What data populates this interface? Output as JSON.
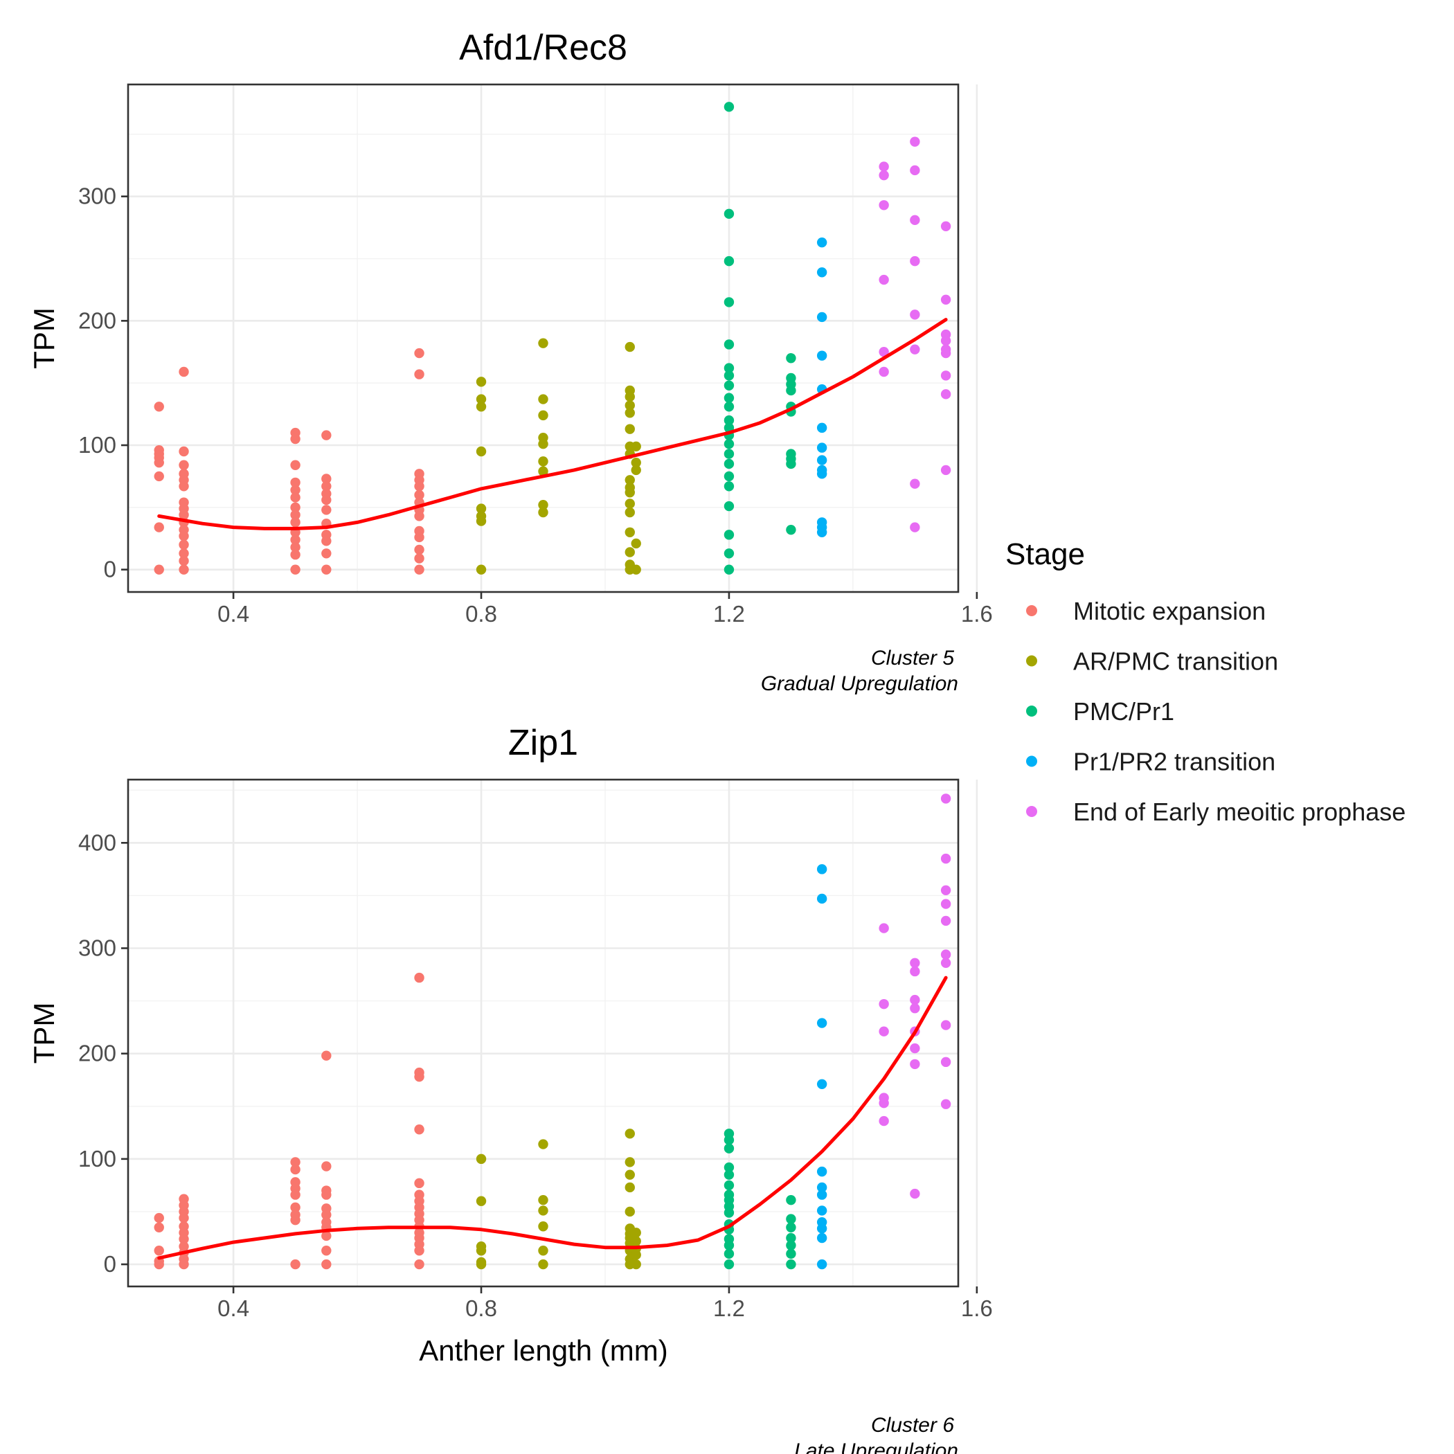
{
  "chart_data": {
    "type": "scatter",
    "legend": {
      "title": "Stage",
      "position": "right",
      "entries": [
        {
          "key": "mitotic",
          "label": "Mitotic expansion",
          "color": "#F8766D"
        },
        {
          "key": "arpmc",
          "label": "AR/PMC transition",
          "color": "#A3A500"
        },
        {
          "key": "pmcpr1",
          "label": "PMC/Pr1",
          "color": "#00BF7D"
        },
        {
          "key": "pr1pr2",
          "label": "Pr1/PR2 transition",
          "color": "#00B0F6"
        },
        {
          "key": "endearly",
          "label": "End of Early meoitic prophase",
          "color": "#E76BF3"
        }
      ]
    },
    "smooth_color": "#FF0000",
    "xlabel": "Anther length (mm)",
    "panels": [
      {
        "title": "Afd1/Rec8",
        "caption": [
          "Cluster 5",
          "Gradual Upregulation"
        ],
        "ylabel": "TPM",
        "xlim": [
          0.23,
          1.57
        ],
        "ylim": [
          -18,
          390
        ],
        "xticks": [
          0.4,
          0.8,
          1.2,
          1.6
        ],
        "xtick_labels": [
          "0.4",
          "0.8",
          "1.2",
          "1.6"
        ],
        "yticks": [
          0,
          100,
          200,
          300
        ],
        "ytick_labels": [
          "0",
          "100",
          "200",
          "300"
        ],
        "points": [
          {
            "stage": "mitotic",
            "x": 0.28,
            "ys": [
              131,
              96,
              93,
              90,
              86,
              75,
              34,
              0
            ]
          },
          {
            "stage": "mitotic",
            "x": 0.32,
            "ys": [
              159,
              95,
              84,
              77,
              72,
              67,
              54,
              49,
              44,
              38,
              32,
              27,
              20,
              13,
              7,
              0
            ]
          },
          {
            "stage": "mitotic",
            "x": 0.5,
            "ys": [
              110,
              105,
              84,
              70,
              64,
              58,
              50,
              44,
              38,
              30,
              24,
              18,
              12,
              0
            ]
          },
          {
            "stage": "mitotic",
            "x": 0.55,
            "ys": [
              108,
              73,
              67,
              61,
              56,
              48,
              37,
              28,
              23,
              13,
              0
            ]
          },
          {
            "stage": "mitotic",
            "x": 0.7,
            "ys": [
              174,
              157,
              77,
              72,
              67,
              60,
              54,
              48,
              43,
              31,
              26,
              16,
              9,
              0
            ]
          },
          {
            "stage": "arpmc",
            "x": 0.8,
            "ys": [
              151,
              137,
              131,
              95,
              49,
              43,
              39,
              0
            ]
          },
          {
            "stage": "arpmc",
            "x": 0.9,
            "ys": [
              182,
              137,
              124,
              106,
              101,
              87,
              79,
              52,
              46
            ]
          },
          {
            "stage": "arpmc",
            "x": 1.04,
            "ys": [
              179,
              144,
              139,
              132,
              126,
              113,
              99,
              93,
              72,
              66,
              62,
              53,
              46,
              30,
              14,
              4,
              0
            ]
          },
          {
            "stage": "arpmc",
            "x": 1.05,
            "ys": [
              99,
              86,
              80,
              21,
              0
            ]
          },
          {
            "stage": "pmcpr1",
            "x": 1.2,
            "ys": [
              372,
              286,
              248,
              215,
              181,
              162,
              156,
              148,
              138,
              131,
              120,
              114,
              108,
              101,
              93,
              85,
              75,
              67,
              51,
              28,
              13,
              0
            ]
          },
          {
            "stage": "pmcpr1",
            "x": 1.3,
            "ys": [
              170,
              154,
              149,
              144,
              131,
              127,
              93,
              89,
              85,
              32
            ]
          },
          {
            "stage": "pr1pr2",
            "x": 1.35,
            "ys": [
              263,
              239,
              203,
              172,
              145,
              114,
              98,
              88,
              80,
              77,
              38,
              34,
              30
            ]
          },
          {
            "stage": "endearly",
            "x": 1.45,
            "ys": [
              324,
              317,
              293,
              233,
              175,
              159
            ]
          },
          {
            "stage": "endearly",
            "x": 1.5,
            "ys": [
              344,
              321,
              281,
              248,
              205,
              177,
              69,
              34
            ]
          },
          {
            "stage": "endearly",
            "x": 1.55,
            "ys": [
              276,
              217,
              189,
              184,
              177,
              174,
              156,
              141,
              80
            ]
          }
        ],
        "smooth": {
          "x": [
            0.28,
            0.35,
            0.4,
            0.45,
            0.5,
            0.55,
            0.6,
            0.65,
            0.7,
            0.75,
            0.8,
            0.85,
            0.9,
            0.95,
            1.0,
            1.05,
            1.1,
            1.15,
            1.2,
            1.25,
            1.3,
            1.35,
            1.4,
            1.45,
            1.5,
            1.55
          ],
          "y": [
            43,
            37,
            34,
            33,
            33,
            34,
            38,
            44,
            51,
            58,
            65,
            70,
            75,
            80,
            86,
            92,
            98,
            104,
            110,
            118,
            129,
            142,
            155,
            170,
            185,
            201
          ]
        }
      },
      {
        "title": "Zip1",
        "caption": [
          "Cluster 6",
          "Late Upregulation"
        ],
        "ylabel": "TPM",
        "xlim": [
          0.23,
          1.57
        ],
        "ylim": [
          -21,
          460
        ],
        "xticks": [
          0.4,
          0.8,
          1.2,
          1.6
        ],
        "xtick_labels": [
          "0.4",
          "0.8",
          "1.2",
          "1.6"
        ],
        "yticks": [
          0,
          100,
          200,
          300,
          400
        ],
        "ytick_labels": [
          "0",
          "100",
          "200",
          "300",
          "400"
        ],
        "points": [
          {
            "stage": "mitotic",
            "x": 0.28,
            "ys": [
              44,
              35,
              13,
              3,
              0
            ]
          },
          {
            "stage": "mitotic",
            "x": 0.32,
            "ys": [
              62,
              56,
              50,
              44,
              36,
              30,
              24,
              17,
              11,
              5,
              0
            ]
          },
          {
            "stage": "mitotic",
            "x": 0.5,
            "ys": [
              97,
              90,
              78,
              72,
              66,
              54,
              47,
              42,
              0
            ]
          },
          {
            "stage": "mitotic",
            "x": 0.55,
            "ys": [
              198,
              93,
              70,
              66,
              53,
              47,
              40,
              35,
              27,
              13,
              0
            ]
          },
          {
            "stage": "mitotic",
            "x": 0.7,
            "ys": [
              272,
              182,
              178,
              128,
              77,
              66,
              60,
              54,
              48,
              42,
              36,
              30,
              25,
              19,
              13,
              0
            ]
          },
          {
            "stage": "arpmc",
            "x": 0.8,
            "ys": [
              100,
              60,
              17,
              13,
              2,
              0
            ]
          },
          {
            "stage": "arpmc",
            "x": 0.9,
            "ys": [
              114,
              61,
              51,
              36,
              13,
              0
            ]
          },
          {
            "stage": "arpmc",
            "x": 1.04,
            "ys": [
              124,
              97,
              85,
              73,
              50,
              34,
              29,
              25,
              20,
              13,
              5,
              0
            ]
          },
          {
            "stage": "arpmc",
            "x": 1.05,
            "ys": [
              30,
              22,
              15,
              9,
              0
            ]
          },
          {
            "stage": "pmcpr1",
            "x": 1.2,
            "ys": [
              124,
              118,
              110,
              92,
              85,
              75,
              66,
              61,
              55,
              49,
              38,
              33,
              24,
              18,
              10,
              0
            ]
          },
          {
            "stage": "pmcpr1",
            "x": 1.3,
            "ys": [
              61,
              43,
              35,
              25,
              18,
              10,
              0
            ]
          },
          {
            "stage": "pr1pr2",
            "x": 1.35,
            "ys": [
              375,
              347,
              229,
              171,
              88,
              73,
              66,
              51,
              40,
              34,
              25,
              0
            ]
          },
          {
            "stage": "endearly",
            "x": 1.45,
            "ys": [
              319,
              247,
              221,
              158,
              153,
              136
            ]
          },
          {
            "stage": "endearly",
            "x": 1.5,
            "ys": [
              286,
              278,
              251,
              243,
              221,
              205,
              190,
              67
            ]
          },
          {
            "stage": "endearly",
            "x": 1.55,
            "ys": [
              442,
              385,
              355,
              342,
              326,
              294,
              286,
              227,
              192,
              152
            ]
          }
        ],
        "smooth": {
          "x": [
            0.28,
            0.35,
            0.4,
            0.45,
            0.5,
            0.55,
            0.6,
            0.65,
            0.7,
            0.75,
            0.8,
            0.85,
            0.9,
            0.95,
            1.0,
            1.05,
            1.1,
            1.15,
            1.2,
            1.25,
            1.3,
            1.35,
            1.4,
            1.45,
            1.5,
            1.55
          ],
          "y": [
            6,
            15,
            21,
            25,
            29,
            32,
            34,
            35,
            35,
            35,
            33,
            29,
            24,
            19,
            16,
            16,
            18,
            23,
            36,
            57,
            80,
            107,
            138,
            176,
            220,
            272
          ]
        }
      }
    ]
  }
}
